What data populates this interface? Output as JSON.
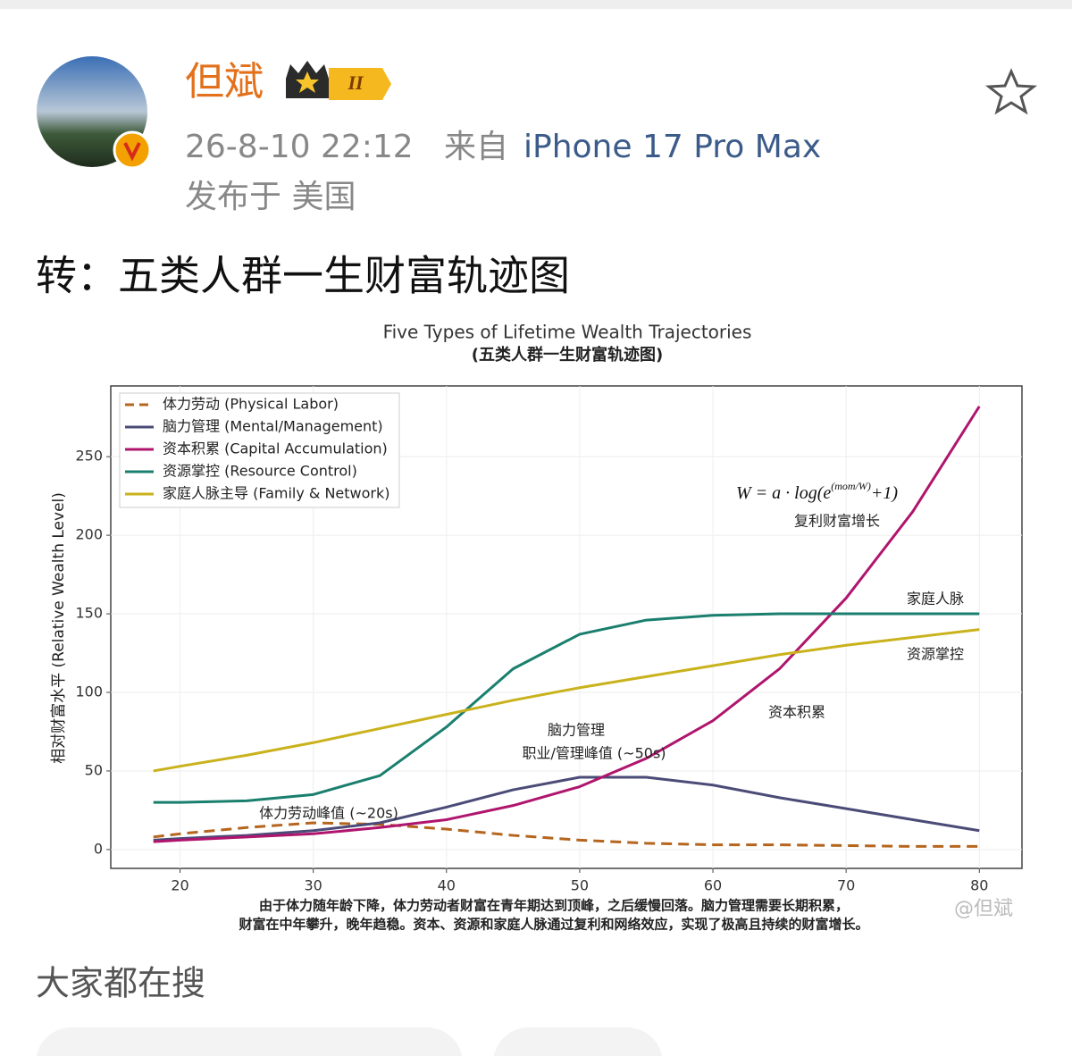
{
  "post": {
    "author": "但斌",
    "badge": "II",
    "time": "26-8-10 22:12",
    "source_prefix": "来自",
    "device": "iPhone 17 Pro Max",
    "location": "发布于 美国",
    "text": "转：五类人群一生财富轨迹图",
    "watermark": "@但斌"
  },
  "chart_data": {
    "type": "line",
    "title": "Five Types of Lifetime Wealth Trajectories",
    "subtitle": "(五类人群一生财富轨迹图)",
    "y_label": "相对财富水平 (Relative Wealth Level)",
    "x": [
      18,
      20,
      25,
      30,
      35,
      40,
      45,
      50,
      55,
      60,
      65,
      70,
      75,
      80
    ],
    "series": [
      {
        "name": "体力劳动 (Physical Labor)",
        "color": "#b5651d",
        "style": "dashed",
        "values": [
          8,
          10,
          14,
          17,
          16,
          13,
          9,
          6,
          4,
          3,
          3,
          2.5,
          2,
          2
        ]
      },
      {
        "name": "脑力管理 (Mental/Management)",
        "color": "#4b4b78",
        "style": "solid",
        "values": [
          6,
          7,
          9,
          12,
          17,
          27,
          38,
          46,
          46,
          41,
          33,
          26,
          19,
          12
        ]
      },
      {
        "name": "资本积累 (Capital Accumulation)",
        "color": "#b0156e",
        "style": "solid",
        "values": [
          5,
          6,
          8,
          10,
          14,
          19,
          28,
          40,
          58,
          82,
          115,
          160,
          215,
          282
        ]
      },
      {
        "name": "资源掌控 (Resource Control)",
        "color": "#1a7f6e",
        "style": "solid",
        "values": [
          30,
          30,
          31,
          35,
          47,
          78,
          115,
          137,
          146,
          149,
          150,
          150,
          150,
          150
        ]
      },
      {
        "name": "家庭人脉主导 (Family & Network)",
        "color": "#c9b21c",
        "style": "solid",
        "values": [
          50,
          53,
          60,
          68,
          77,
          86,
          95,
          103,
          110,
          117,
          124,
          130,
          135,
          140
        ]
      }
    ],
    "xlim": [
      14.8,
      83.2
    ],
    "ylim": [
      -12,
      295
    ],
    "xticks": [
      20,
      30,
      40,
      50,
      60,
      70,
      80
    ],
    "yticks": [
      0,
      50,
      100,
      150,
      200,
      250
    ],
    "grid": true,
    "legend": "upper left",
    "formula": {
      "base": "W = a · log(e",
      "exponent": "(mom/W)",
      "tail": "+1)"
    },
    "annotations": [
      "复利财富增长",
      "家庭人脉",
      "资源掌控",
      "资本积累",
      "脑力管理",
      "职业/管理峰值 (~50s)",
      "体力劳动峰值 (~20s)"
    ],
    "caption": [
      "由于体力随年龄下降，体力劳动者财富在青年期达到顶峰，之后缓慢回落。脑力管理需要长期积累，",
      "财富在中年攀升，晚年趋稳。资本、资源和家庭人脉通过复利和网络效应，实现了极高且持续的财富增长。"
    ]
  },
  "section": "大家都在搜"
}
